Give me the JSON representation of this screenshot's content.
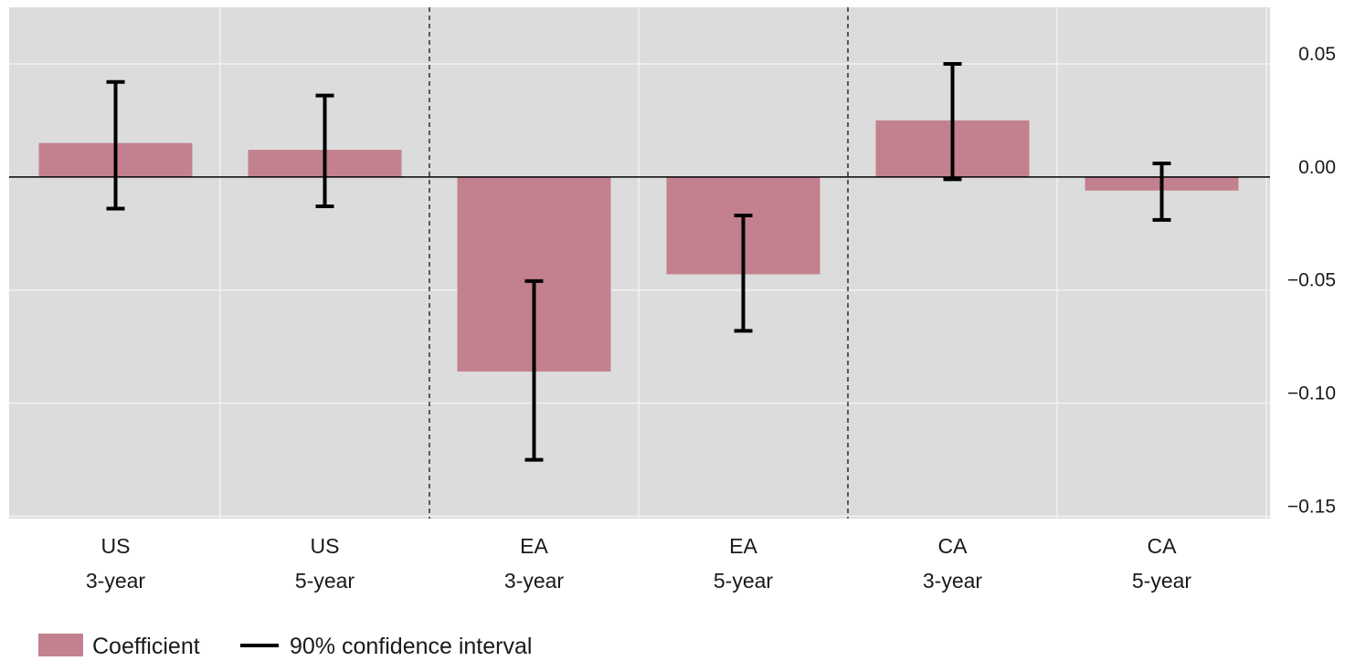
{
  "chart_data": {
    "type": "bar",
    "categories": [
      [
        "US",
        "3-year"
      ],
      [
        "US",
        "5-year"
      ],
      [
        "EA",
        "3-year"
      ],
      [
        "EA",
        "5-year"
      ],
      [
        "CA",
        "3-year"
      ],
      [
        "CA",
        "5-year"
      ]
    ],
    "series": [
      {
        "name": "Coefficient",
        "values": [
          0.015,
          0.012,
          -0.086,
          -0.043,
          0.025,
          -0.006
        ]
      },
      {
        "name": "90% confidence interval",
        "lower": [
          -0.014,
          -0.013,
          -0.125,
          -0.068,
          -0.001,
          -0.019
        ],
        "upper": [
          0.042,
          0.036,
          -0.046,
          -0.017,
          0.05,
          0.006
        ]
      }
    ],
    "yticks": [
      "0.05",
      "0.00",
      "−0.05",
      "−0.10",
      "−0.15"
    ],
    "ylim": [
      -0.151,
      0.075
    ],
    "y_axis_side": "right",
    "grid": true,
    "group_separators": "dashed lines between US, EA and CA groups",
    "legend_position": "bottom-left",
    "colors": {
      "bar": "#c3808e",
      "ci": "#000000",
      "panel": "#dcdcdc",
      "grid": "#f2f2f2"
    }
  }
}
